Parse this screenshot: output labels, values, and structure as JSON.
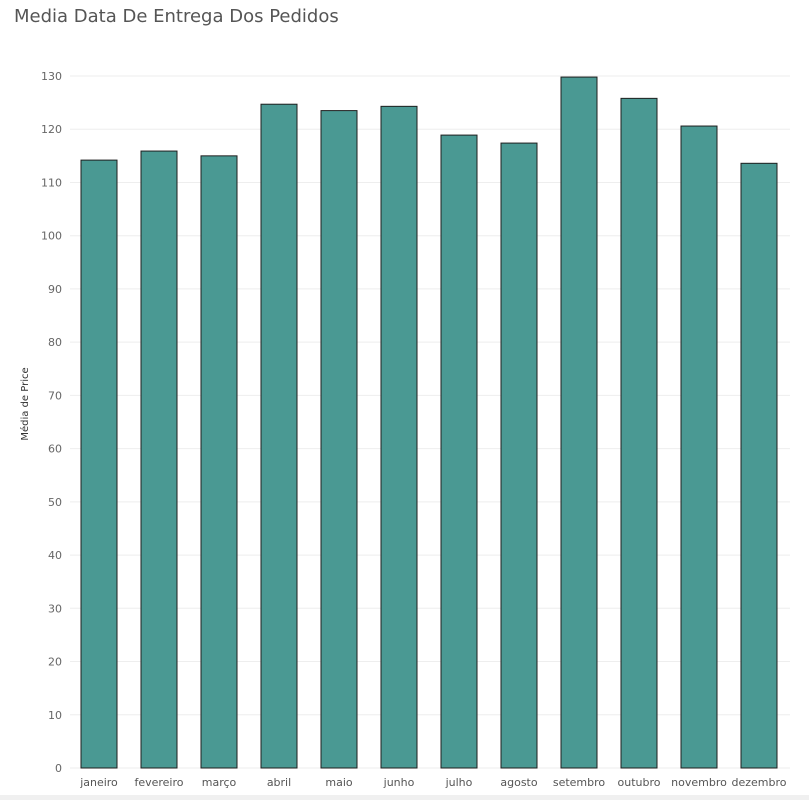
{
  "title": "Media Data De Entrega Dos Pedidos",
  "chart_data": {
    "type": "bar",
    "title": "Media Data De Entrega Dos Pedidos",
    "xlabel": "",
    "ylabel": "Média de Price",
    "categories": [
      "janeiro",
      "fevereiro",
      "março",
      "abril",
      "maio",
      "junho",
      "julho",
      "agosto",
      "setembro",
      "outubro",
      "novembro",
      "dezembro"
    ],
    "values": [
      114.2,
      115.9,
      115.0,
      124.7,
      123.5,
      124.3,
      118.9,
      117.4,
      129.8,
      125.8,
      120.6,
      113.6
    ],
    "ylim": [
      0,
      130
    ],
    "yticks": [
      0,
      10,
      20,
      30,
      40,
      50,
      60,
      70,
      80,
      90,
      100,
      110,
      120,
      130
    ],
    "grid": true,
    "colors": {
      "bar": "#4a9993",
      "bar_stroke": "#1e1e1e",
      "grid": "#eeeeee"
    }
  }
}
